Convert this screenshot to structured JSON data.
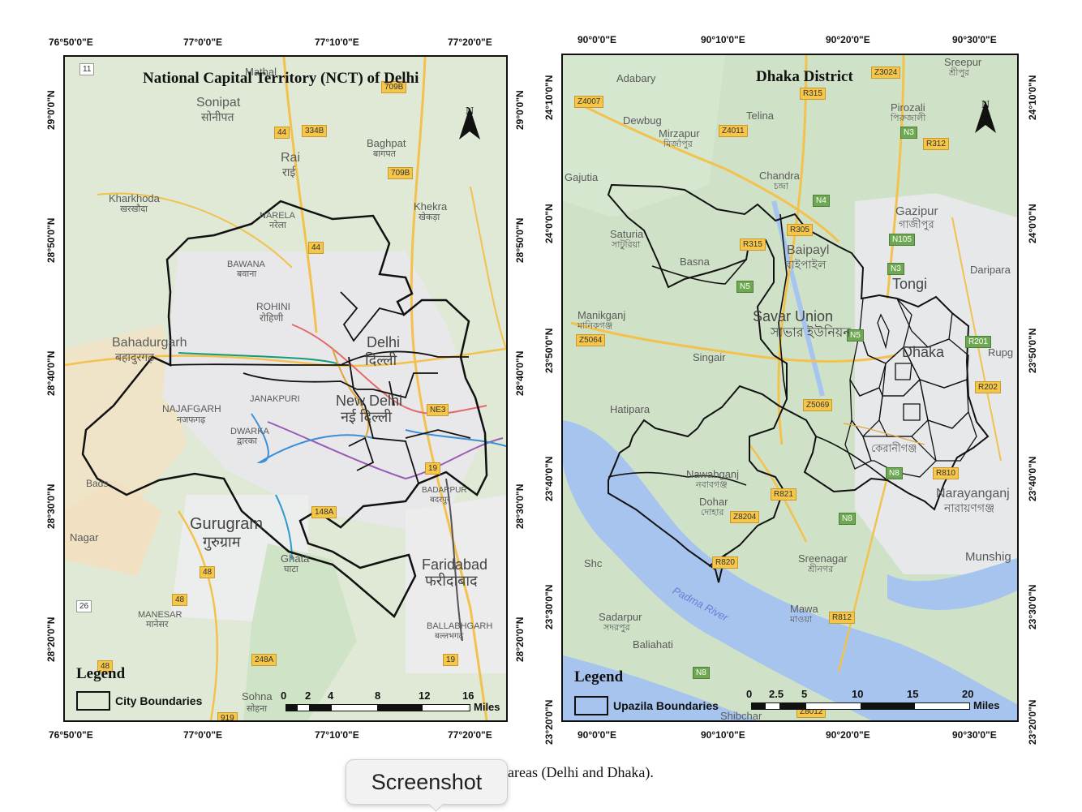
{
  "delhi": {
    "title": "National Capital Territory (NCT) of Delhi",
    "north": "N",
    "top_ticks": [
      "76°50'0\"E",
      "77°0'0\"E",
      "77°10'0\"E",
      "77°20'0\"E"
    ],
    "bottom_ticks": [
      "76°50'0\"E",
      "77°0'0\"E",
      "77°10'0\"E",
      "77°20'0\"E"
    ],
    "left_ticks": [
      "29°0'0\"N",
      "28°50'0\"N",
      "28°40'0\"N",
      "28°30'0\"N",
      "28°20'0\"N"
    ],
    "right_ticks": [
      "29°0'0\"N",
      "28°50'0\"N",
      "28°40'0\"N",
      "28°30'0\"N",
      "28°20'0\"N"
    ],
    "places": {
      "sonipat": "Sonipat",
      "sonipat_hi": "सोनीपत",
      "rai": "Rai",
      "rai_hi": "राई",
      "baghpat": "Baghpat",
      "baghpat_hi": "बागपत",
      "kharkhoda": "Kharkhoda",
      "kharkhoda_hi": "खरखौदा",
      "narela": "NARELA",
      "narela_hi": "नरेला",
      "khekra": "Khekra",
      "khekra_hi": "खेकड़ा",
      "bawana": "BAWANA",
      "bawana_hi": "बवाना",
      "rohini": "ROHINI",
      "rohini_hi": "रोहिणी",
      "bahadurgarh": "Bahadurgarh",
      "bahadurgarh_hi": "बहादुरगढ़",
      "delhi": "Delhi",
      "delhi_hi": "दिल्ली",
      "najafgarh": "NAJAFGARH",
      "najafgarh_hi": "नजफगढ़",
      "janakpuri": "JANAKPURI",
      "new_delhi": "New Delhi",
      "new_delhi_hi": "नई दिल्ली",
      "dwarka": "DWARKA",
      "dwarka_hi": "द्वारका",
      "badarpur": "BADARPUR",
      "badarpur_hi": "बदरपुर",
      "gurugram": "Gurugram",
      "gurugram_hi": "गुरुग्राम",
      "ghata": "Ghata",
      "ghata_hi": "घाटा",
      "faridabad": "Faridabad",
      "faridabad_hi": "फरीदाबाद",
      "manesar": "MANESAR",
      "manesar_hi": "मानेसर",
      "ballabhgarh": "BALLABHGARH",
      "ballabhgarh_hi": "बल्लभगढ़",
      "sohna": "Sohna",
      "sohna_hi": "सोहना",
      "nagar": "Nagar",
      "mathal": "Mathal",
      "bads": "Bads"
    },
    "roads": [
      "11",
      "44",
      "334B",
      "709B",
      "709B",
      "44",
      "NE3",
      "19",
      "148A",
      "48",
      "48",
      "26",
      "48",
      "248A",
      "19",
      "919"
    ],
    "legend": {
      "title": "Legend",
      "label": "City Boundaries"
    },
    "scale": {
      "labels": [
        "0",
        "2",
        "4",
        "8",
        "12",
        "16"
      ],
      "unit": "Miles"
    }
  },
  "dhaka": {
    "title": "Dhaka District",
    "north": "N",
    "top_ticks": [
      "90°0'0\"E",
      "90°10'0\"E",
      "90°20'0\"E",
      "90°30'0\"E"
    ],
    "bottom_ticks": [
      "90°0'0\"E",
      "90°10'0\"E",
      "90°20'0\"E",
      "90°30'0\"E"
    ],
    "left_ticks": [
      "24°10'0\"N",
      "24°0'0\"N",
      "23°50'0\"N",
      "23°40'0\"N",
      "23°30'0\"N",
      "23°20'0\"N"
    ],
    "right_ticks": [
      "24°10'0\"N",
      "24°0'0\"N",
      "23°50'0\"N",
      "23°40'0\"N",
      "23°30'0\"N",
      "23°20'0\"N"
    ],
    "places": {
      "adabary": "Adabary",
      "sreepur": "Sreepur",
      "sreepur_bn": "শ্রীপুর",
      "dewbug": "Dewbug",
      "telina": "Telina",
      "pirozali": "Pirozali",
      "pirozali_bn": "পিরুজালী",
      "mirzapur": "Mirzapur",
      "mirzapur_bn": "মির্জাপুর",
      "gajutia": "Gajutia",
      "chandra": "Chandra",
      "chandra_bn": "চন্দ্রা",
      "gazipur": "Gazipur",
      "gazipur_bn": "গাজীপুর",
      "saturia": "Saturia",
      "saturia_bn": "সাটুরিয়া",
      "basna": "Basna",
      "baipayl": "Baipayl",
      "baipayl_bn": "বাইপাইল",
      "tongi": "Tongi",
      "daripara": "Daripara",
      "manikganj": "Manikganj",
      "manikganj_bn": "মানিকগঞ্জ",
      "savar": "Savar Union",
      "savar_bn": "সাভার ইউনিয়ন",
      "singair": "Singair",
      "dhaka": "Dhaka",
      "rupg": "Rupg",
      "hatipara": "Hatipara",
      "keraniganj_bn": "কেরানীগঞ্জ",
      "nawabganj": "Nawabganj",
      "nawabganj_bn": "নবাবগঞ্জ",
      "dohar": "Dohar",
      "dohar_bn": "দোহার",
      "narayanganj": "Narayanganj",
      "narayanganj_bn": "নারায়ণগঞ্জ",
      "shc": "Shc",
      "sreenagar": "Sreenagar",
      "sreenagar_bn": "শ্রীনগর",
      "munshi": "Munshig",
      "sadarpur": "Sadarpur",
      "sadarpur_bn": "সদরপুর",
      "mawa": "Mawa",
      "mawa_bn": "মাওয়া",
      "baliahati": "Baliahati",
      "padma": "Padma River",
      "shibchar": "Shibchar"
    },
    "roads": [
      "Z3024",
      "R315",
      "Z4007",
      "Z4011",
      "N3",
      "R312",
      "N4",
      "R305",
      "R315",
      "N105",
      "N3",
      "N5",
      "Z5064",
      "N5",
      "R201",
      "R202",
      "Z5069",
      "N8",
      "R810",
      "R821",
      "Z8204",
      "N8",
      "R820",
      "R812",
      "N8",
      "Z8012"
    ],
    "legend": {
      "title": "Legend",
      "label": "Upazila Boundaries"
    },
    "scale": {
      "labels": [
        "0",
        "2.5",
        "5",
        "10",
        "15",
        "20"
      ],
      "unit": "Miles"
    }
  },
  "caption": "areas (Delhi and Dhaka).",
  "tooltip": "Screenshot"
}
